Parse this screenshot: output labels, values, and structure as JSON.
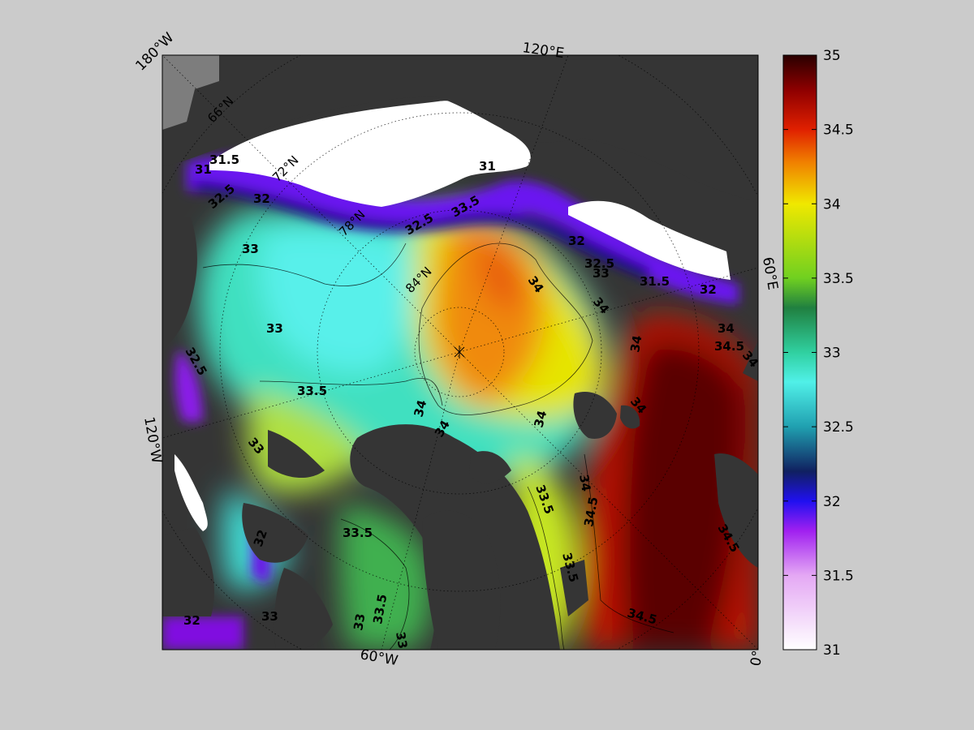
{
  "map": {
    "edge_labels": {
      "top_left": "180°W",
      "top": "120°E",
      "right": "60°E",
      "left": "120°W",
      "bottom": "60°W",
      "bottom_right": "0°"
    },
    "lat_labels": [
      "66°N",
      "72°N",
      "78°N",
      "84°N"
    ],
    "contour_labels": [
      "31",
      "31.5",
      "32",
      "32.5",
      "33",
      "33.5",
      "34",
      "34.5"
    ],
    "colors": {
      "land": "#353535",
      "land_alt": "#7d7d7d",
      "ice": "#ffffff",
      "salinity_31": "#ffffff",
      "salinity_32": "#2a18e8",
      "salinity_33": "#35e0c8",
      "salinity_34": "#e8e800",
      "salinity_35": "#3a0000"
    }
  },
  "colorbar": {
    "min": 31,
    "max": 35,
    "ticks": [
      "35",
      "34.5",
      "34",
      "33.5",
      "33",
      "32.5",
      "32",
      "31.5",
      "31"
    ]
  }
}
